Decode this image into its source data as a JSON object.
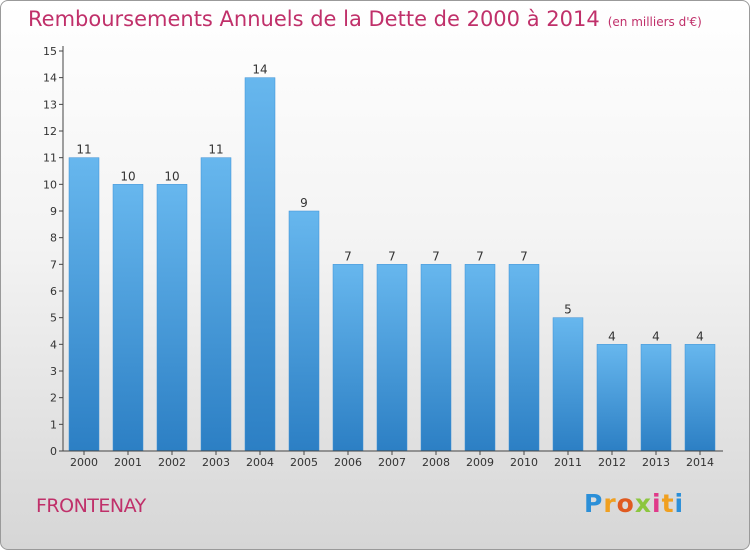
{
  "chart_data": {
    "type": "bar",
    "title": "Remboursements Annuels de la Dette de 2000 à 2014",
    "unit_note": "(en milliers d'€)",
    "categories": [
      "2000",
      "2001",
      "2002",
      "2003",
      "2004",
      "2005",
      "2006",
      "2007",
      "2008",
      "2009",
      "2010",
      "2011",
      "2012",
      "2013",
      "2014"
    ],
    "values": [
      11,
      10,
      10,
      11,
      14,
      9,
      7,
      7,
      7,
      7,
      7,
      5,
      4,
      4,
      4
    ],
    "data_labels": [
      "11",
      "10",
      "10",
      "11",
      "14",
      "9",
      "7",
      "7",
      "7",
      "7",
      "7",
      "5",
      "4",
      "4",
      "4"
    ],
    "ylim": [
      0,
      15
    ],
    "yticks": [
      "0",
      "1",
      "2",
      "3",
      "4",
      "5",
      "6",
      "7",
      "8",
      "9",
      "10",
      "11",
      "12",
      "13",
      "14",
      "15"
    ],
    "xlabel": "",
    "ylabel": "",
    "grid": false,
    "colors": {
      "bar_light": "#67b7ee",
      "bar_dark": "#2c7fc4",
      "title": "#c0306a",
      "axis": "#444444"
    }
  },
  "commune": "FRONTENAY",
  "logo": {
    "letters": [
      "P",
      "r",
      "o",
      "x",
      "i",
      "t",
      "i"
    ],
    "colors": [
      "#2b8fd8",
      "#f0a020",
      "#e05a20",
      "#8cc63f",
      "#e03a8a",
      "#f0a020",
      "#2b8fd8"
    ]
  }
}
